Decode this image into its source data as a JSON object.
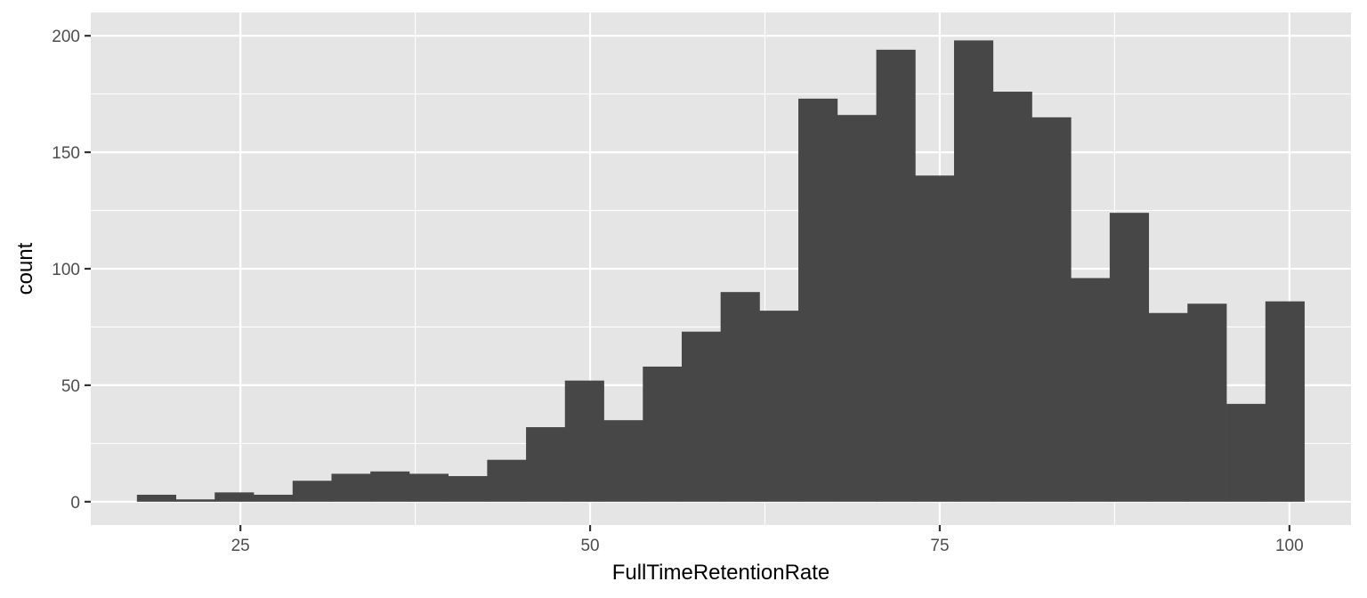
{
  "chart_data": {
    "type": "bar",
    "title": "",
    "xlabel": "FullTimeRetentionRate",
    "ylabel": "count",
    "bin_width": 2.782,
    "bins": [
      {
        "x_start": 17.6,
        "count": 3
      },
      {
        "x_start": 20.38,
        "count": 1
      },
      {
        "x_start": 23.16,
        "count": 4
      },
      {
        "x_start": 25.95,
        "count": 3
      },
      {
        "x_start": 28.73,
        "count": 9
      },
      {
        "x_start": 31.51,
        "count": 12
      },
      {
        "x_start": 34.29,
        "count": 13
      },
      {
        "x_start": 37.07,
        "count": 12
      },
      {
        "x_start": 39.86,
        "count": 11
      },
      {
        "x_start": 42.64,
        "count": 18
      },
      {
        "x_start": 45.42,
        "count": 32
      },
      {
        "x_start": 48.2,
        "count": 52
      },
      {
        "x_start": 50.98,
        "count": 35
      },
      {
        "x_start": 53.77,
        "count": 58
      },
      {
        "x_start": 56.55,
        "count": 73
      },
      {
        "x_start": 59.33,
        "count": 90
      },
      {
        "x_start": 62.11,
        "count": 82
      },
      {
        "x_start": 64.89,
        "count": 173
      },
      {
        "x_start": 67.68,
        "count": 166
      },
      {
        "x_start": 70.46,
        "count": 194
      },
      {
        "x_start": 73.24,
        "count": 140
      },
      {
        "x_start": 76.02,
        "count": 198
      },
      {
        "x_start": 78.8,
        "count": 176
      },
      {
        "x_start": 81.59,
        "count": 165
      },
      {
        "x_start": 84.37,
        "count": 96
      },
      {
        "x_start": 87.15,
        "count": 124
      },
      {
        "x_start": 89.93,
        "count": 81
      },
      {
        "x_start": 92.71,
        "count": 85
      },
      {
        "x_start": 95.5,
        "count": 42
      },
      {
        "x_start": 98.28,
        "count": 86
      }
    ],
    "xlim": [
      14.3,
      104.4
    ],
    "ylim": [
      -10,
      210
    ],
    "x_ticks": [
      25,
      50,
      75,
      100
    ],
    "y_ticks": [
      0,
      50,
      100,
      150,
      200
    ],
    "x_tick_labels": [
      "25",
      "50",
      "75",
      "100"
    ],
    "y_tick_labels": [
      "0",
      "50",
      "100",
      "150",
      "200"
    ],
    "grid": true,
    "bar_color": "#474747",
    "panel_color": "#e5e5e5",
    "grid_color": "#ffffff"
  }
}
